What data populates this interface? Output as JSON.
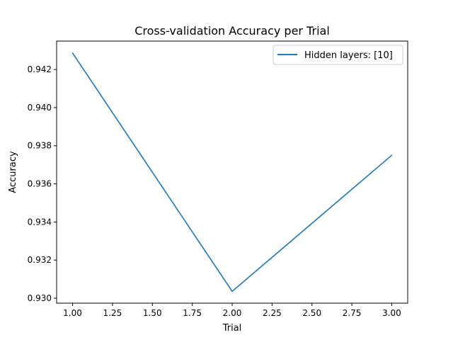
{
  "chart_data": {
    "type": "line",
    "title": "Cross-validation Accuracy per Trial",
    "xlabel": "Trial",
    "ylabel": "Accuracy",
    "x": [
      1.0,
      2.0,
      3.0
    ],
    "series": [
      {
        "name": "Hidden layers: [10]",
        "values": [
          0.94286,
          0.93036,
          0.9375
        ],
        "color": "#1f77b4"
      }
    ],
    "xlim": [
      0.9,
      3.1
    ],
    "ylim": [
      0.92974,
      0.94349
    ],
    "xticks": [
      1.0,
      1.25,
      1.5,
      1.75,
      2.0,
      2.25,
      2.5,
      2.75,
      3.0
    ],
    "xtick_labels": [
      "1.00",
      "1.25",
      "1.50",
      "1.75",
      "2.00",
      "2.25",
      "2.50",
      "2.75",
      "3.00"
    ],
    "yticks": [
      0.93,
      0.932,
      0.934,
      0.936,
      0.938,
      0.94,
      0.942
    ],
    "ytick_labels": [
      "0.930",
      "0.932",
      "0.934",
      "0.936",
      "0.938",
      "0.940",
      "0.942"
    ],
    "grid": false,
    "legend_position": "top-right"
  }
}
